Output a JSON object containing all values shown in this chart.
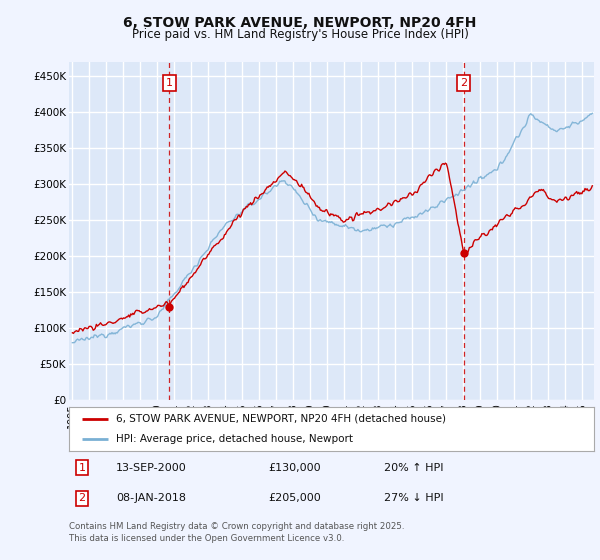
{
  "title": "6, STOW PARK AVENUE, NEWPORT, NP20 4FH",
  "subtitle": "Price paid vs. HM Land Registry's House Price Index (HPI)",
  "background_color": "#f0f4ff",
  "plot_bg_color": "#dde8f8",
  "grid_color": "#ffffff",
  "ylim": [
    0,
    470000
  ],
  "yticks": [
    0,
    50000,
    100000,
    150000,
    200000,
    250000,
    300000,
    350000,
    400000,
    450000
  ],
  "ytick_labels": [
    "£0",
    "£50K",
    "£100K",
    "£150K",
    "£200K",
    "£250K",
    "£300K",
    "£350K",
    "£400K",
    "£450K"
  ],
  "sale1_date_x": 2000.71,
  "sale1_price": 130000,
  "sale1_label": "1",
  "sale2_date_x": 2018.03,
  "sale2_price": 205000,
  "sale2_label": "2",
  "legend_line1": "6, STOW PARK AVENUE, NEWPORT, NP20 4FH (detached house)",
  "legend_line2": "HPI: Average price, detached house, Newport",
  "footer": "Contains HM Land Registry data © Crown copyright and database right 2025.\nThis data is licensed under the Open Government Licence v3.0.",
  "line_red_color": "#cc0000",
  "line_blue_color": "#7ab0d4",
  "marker_color": "#cc0000",
  "xlim_left": 1994.8,
  "xlim_right": 2025.7
}
